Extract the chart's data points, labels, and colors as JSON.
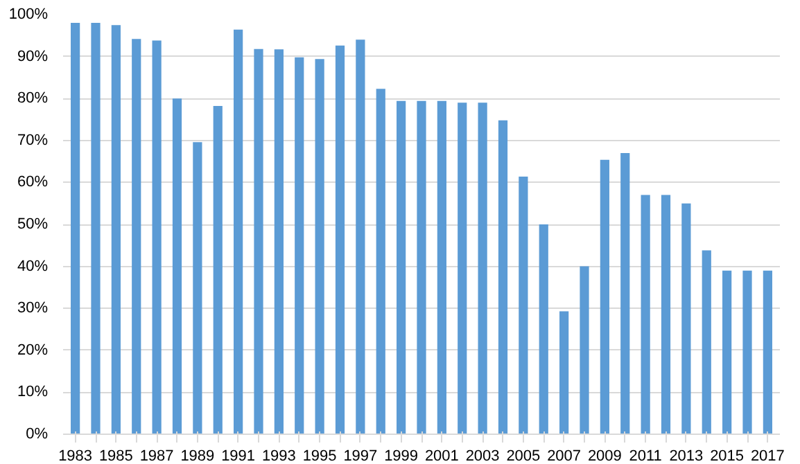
{
  "chart_data": {
    "type": "bar",
    "categories": [
      "1983",
      null,
      "1985",
      null,
      "1987",
      null,
      "1989",
      null,
      "1991",
      null,
      "1993",
      null,
      "1995",
      null,
      "1997",
      null,
      "1999",
      null,
      "2001",
      null,
      "2003",
      null,
      "2005",
      null,
      "2007",
      null,
      "2009",
      null,
      "2011",
      null,
      "2013",
      null,
      "2015",
      null,
      "2017"
    ],
    "values": [
      98,
      98,
      97.5,
      94.2,
      93.8,
      80,
      69.6,
      78.2,
      96.4,
      91.8,
      91.7,
      89.8,
      89.4,
      92.6,
      94,
      82.3,
      79.4,
      79.4,
      79.4,
      79,
      79,
      74.8,
      61.4,
      50,
      29.3,
      40,
      65.4,
      67,
      57,
      57,
      55,
      43.8,
      39,
      39,
      39
    ],
    "color": "#5b9bd5",
    "ylim": [
      0,
      100
    ],
    "yticks": [
      {
        "value": 0,
        "label": "0%"
      },
      {
        "value": 10,
        "label": "10%"
      },
      {
        "value": 20,
        "label": "20%"
      },
      {
        "value": 30,
        "label": "30%"
      },
      {
        "value": 40,
        "label": "40%"
      },
      {
        "value": 50,
        "label": "50%"
      },
      {
        "value": 60,
        "label": "60%"
      },
      {
        "value": 70,
        "label": "70%"
      },
      {
        "value": 80,
        "label": "80%"
      },
      {
        "value": 90,
        "label": "90%"
      },
      {
        "value": 100,
        "label": "100%"
      }
    ],
    "grid": "y"
  }
}
